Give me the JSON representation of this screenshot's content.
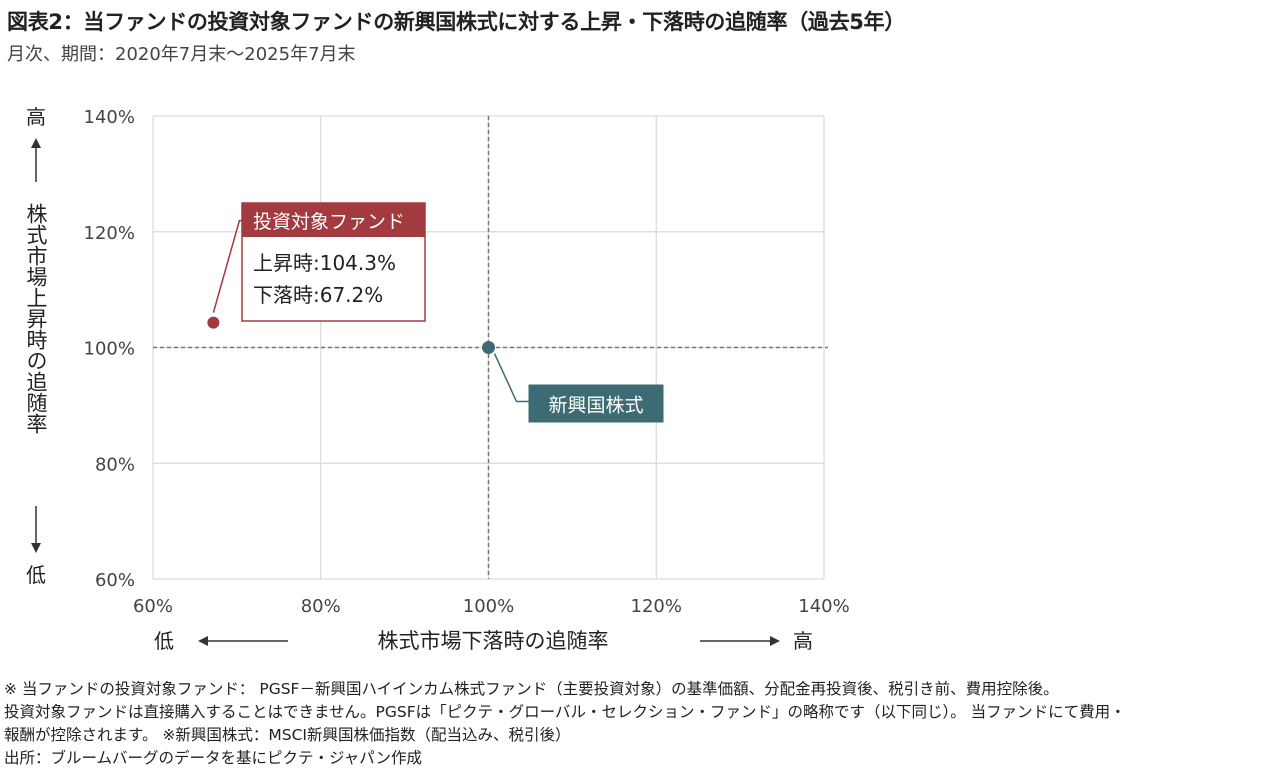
{
  "title": "図表2：当ファンドの投資対象ファンドの新興国株式に対する上昇・下落時の追随率（過去5年）",
  "subtitle": "月次、期間：2020年7月末～2025年7月末",
  "chart_data": {
    "type": "scatter",
    "xlabel": "株式市場下落時の追随率",
    "x_low_label": "低",
    "x_high_label": "高",
    "ylabel": "株式市場上昇時の追随率",
    "y_low_label": "低",
    "y_high_label": "高",
    "xlim": [
      60,
      140
    ],
    "ylim": [
      60,
      140
    ],
    "x_ticks": [
      "60%",
      "80%",
      "100%",
      "120%",
      "140%"
    ],
    "y_ticks": [
      "60%",
      "80%",
      "100%",
      "120%",
      "140%"
    ],
    "grid": true,
    "reference_lines": {
      "x": 100,
      "y": 100
    },
    "points": [
      {
        "name": "投資対象ファンド",
        "x": 67.2,
        "y": 104.3,
        "color": "#a23a3f",
        "annotation": [
          "上昇時:104.3%",
          "下落時:67.2%"
        ]
      },
      {
        "name": "新興国株式",
        "x": 100,
        "y": 100,
        "color": "#3d6b74"
      }
    ]
  },
  "notes": [
    "※ 当ファンドの投資対象ファンド： PGSF－新興国ハイインカム株式ファンド（主要投資対象）の基準価額、分配金再投資後、税引き前、費用控除後。",
    "投資対象ファンドは直接購入することはできません。PGSFは「ピクテ・グローバル・セレクション・ファンド」の略称です（以下同じ）。 当ファンドにて費用・",
    "報酬が控除されます。 ※新興国株式：MSCI新興国株価指数（配当込み、税引後）",
    "出所：ブルームバーグのデータを基にピクテ・ジャパン作成"
  ]
}
